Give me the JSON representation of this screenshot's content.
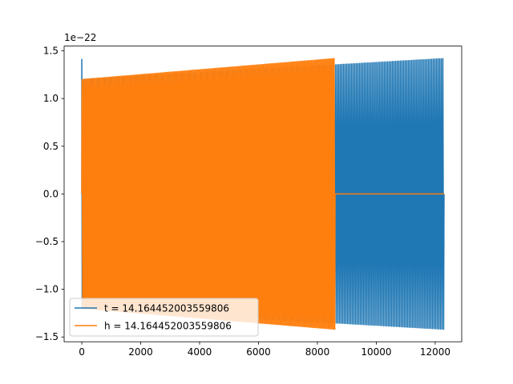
{
  "chart_data": {
    "type": "line",
    "title": "",
    "xlabel": "",
    "ylabel": "",
    "y_offset_label": "1e−22",
    "xlim": [
      -600,
      12900
    ],
    "ylim": [
      -1.55,
      1.55
    ],
    "x_ticks": [
      0,
      2000,
      4000,
      6000,
      8000,
      10000,
      12000
    ],
    "x_tick_labels": [
      "0",
      "2000",
      "4000",
      "6000",
      "8000",
      "10000",
      "12000"
    ],
    "y_ticks": [
      -1.5,
      -1.0,
      -0.5,
      0.0,
      0.5,
      1.0,
      1.5
    ],
    "y_tick_labels": [
      "−1.5",
      "−1.0",
      "−0.5",
      "0.0",
      "0.5",
      "1.0",
      "1.5"
    ],
    "grid": false,
    "legend_position": "lower-left",
    "series": [
      {
        "name": "t = 14.164452003559806",
        "color": "#1f77b4",
        "x_range": [
          0,
          12300
        ],
        "initial_spike": 1.41,
        "amplitude_start": 1.2,
        "amplitude_end": 1.42,
        "cycles": 230
      },
      {
        "name": "h = 14.164452003559806",
        "color": "#ff7f0e",
        "x_range": [
          0,
          8600
        ],
        "amplitude_start": 1.2,
        "amplitude_end": 1.42,
        "cycles": 200,
        "tail_x_range": [
          8600,
          12300
        ],
        "tail_value": 0.0
      }
    ]
  }
}
